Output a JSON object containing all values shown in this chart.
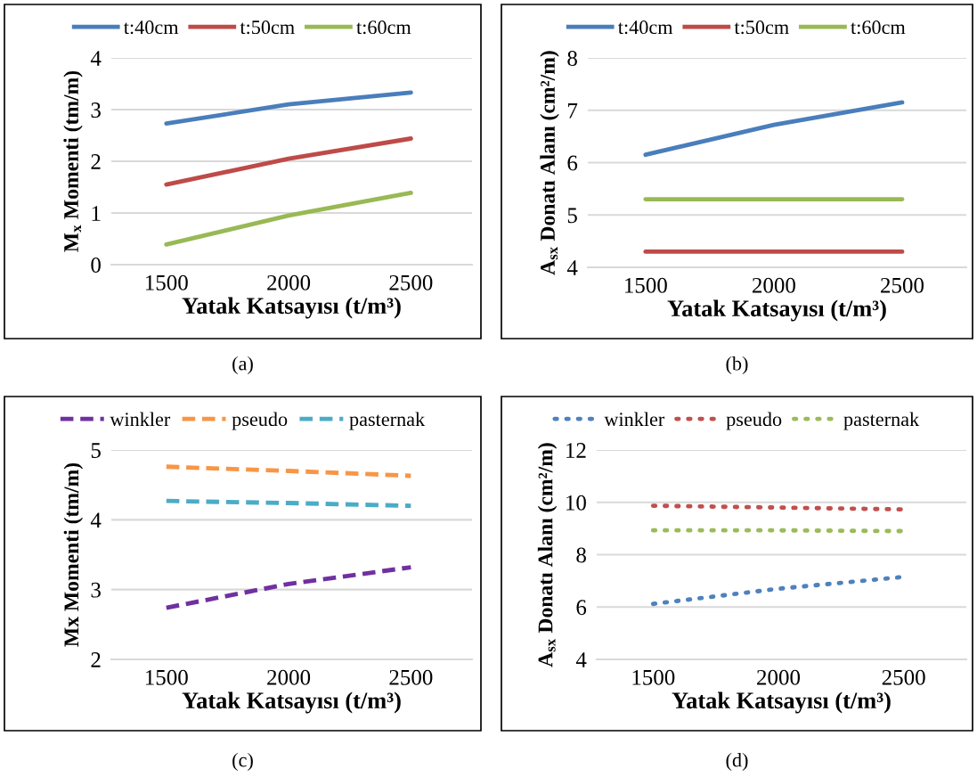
{
  "chart_data": [
    {
      "type": "line",
      "categories": [
        "1500",
        "2000",
        "2500"
      ],
      "xlabel": "Yatak Katsayısı (t/m³)",
      "ylabel": "M$_{x}$ Momenti (tm/m)",
      "ylim": [
        0,
        4
      ],
      "yticks": [
        0,
        1,
        2,
        3,
        4
      ],
      "grid": "y",
      "legend": "top",
      "line_style": "solid",
      "annotations": [
        "(a)"
      ],
      "series": [
        {
          "name": "t:40cm",
          "color": "#4a7ebb",
          "values": [
            2.73,
            3.1,
            3.33
          ]
        },
        {
          "name": "t:50cm",
          "color": "#be4b48",
          "values": [
            1.55,
            2.05,
            2.44
          ]
        },
        {
          "name": "t:60cm",
          "color": "#98b954",
          "values": [
            0.39,
            0.95,
            1.39
          ]
        }
      ]
    },
    {
      "type": "line",
      "categories": [
        "1500",
        "2000",
        "2500"
      ],
      "xlabel": "Yatak Katsayısı (t/m³)",
      "ylabel": "A$_{sx}$ Donatı Alanı (cm²/m)",
      "ylim": [
        4,
        8
      ],
      "yticks": [
        4,
        5,
        6,
        7,
        8
      ],
      "grid": "y",
      "legend": "top",
      "line_style": "solid",
      "annotations": [
        "(b)"
      ],
      "series": [
        {
          "name": "t:40cm",
          "color": "#4a7ebb",
          "values": [
            6.15,
            6.72,
            7.15
          ]
        },
        {
          "name": "t:50cm",
          "color": "#be4b48",
          "values": [
            4.3,
            4.3,
            4.3
          ]
        },
        {
          "name": "t:60cm",
          "color": "#98b954",
          "values": [
            5.3,
            5.3,
            5.3
          ]
        }
      ]
    },
    {
      "type": "line",
      "categories": [
        "1500",
        "2000",
        "2500"
      ],
      "xlabel": "Yatak Katsayısı (t/m³)",
      "ylabel": "Mx Momenti (tm/m)",
      "ylim": [
        2,
        5
      ],
      "yticks": [
        2,
        3,
        4,
        5
      ],
      "grid": "y",
      "legend": "top",
      "line_style": "dashed",
      "annotations": [
        "(c)"
      ],
      "series": [
        {
          "name": "winkler",
          "color": "#7030a0",
          "values": [
            2.74,
            3.08,
            3.32
          ]
        },
        {
          "name": "pseudo",
          "color": "#f79646",
          "values": [
            4.76,
            4.7,
            4.63
          ]
        },
        {
          "name": "pasternak",
          "color": "#4bacc6",
          "values": [
            4.27,
            4.24,
            4.2
          ]
        }
      ]
    },
    {
      "type": "line",
      "categories": [
        "1500",
        "2000",
        "2500"
      ],
      "xlabel": "Yatak Katsayısı (t/m³)",
      "ylabel": "A$_{sx}$ Donatı Alanı (cm²/m)",
      "ylim": [
        4,
        12
      ],
      "yticks": [
        4,
        6,
        8,
        10,
        12
      ],
      "grid": "y",
      "legend": "top",
      "line_style": "dotted",
      "annotations": [
        "(d)"
      ],
      "series": [
        {
          "name": "winkler",
          "color": "#4f81bd",
          "values": [
            6.12,
            6.7,
            7.15
          ]
        },
        {
          "name": "pseudo",
          "color": "#c0504d",
          "values": [
            9.87,
            9.8,
            9.73
          ]
        },
        {
          "name": "pasternak",
          "color": "#9bbb59",
          "values": [
            8.93,
            8.93,
            8.9
          ]
        }
      ]
    }
  ]
}
